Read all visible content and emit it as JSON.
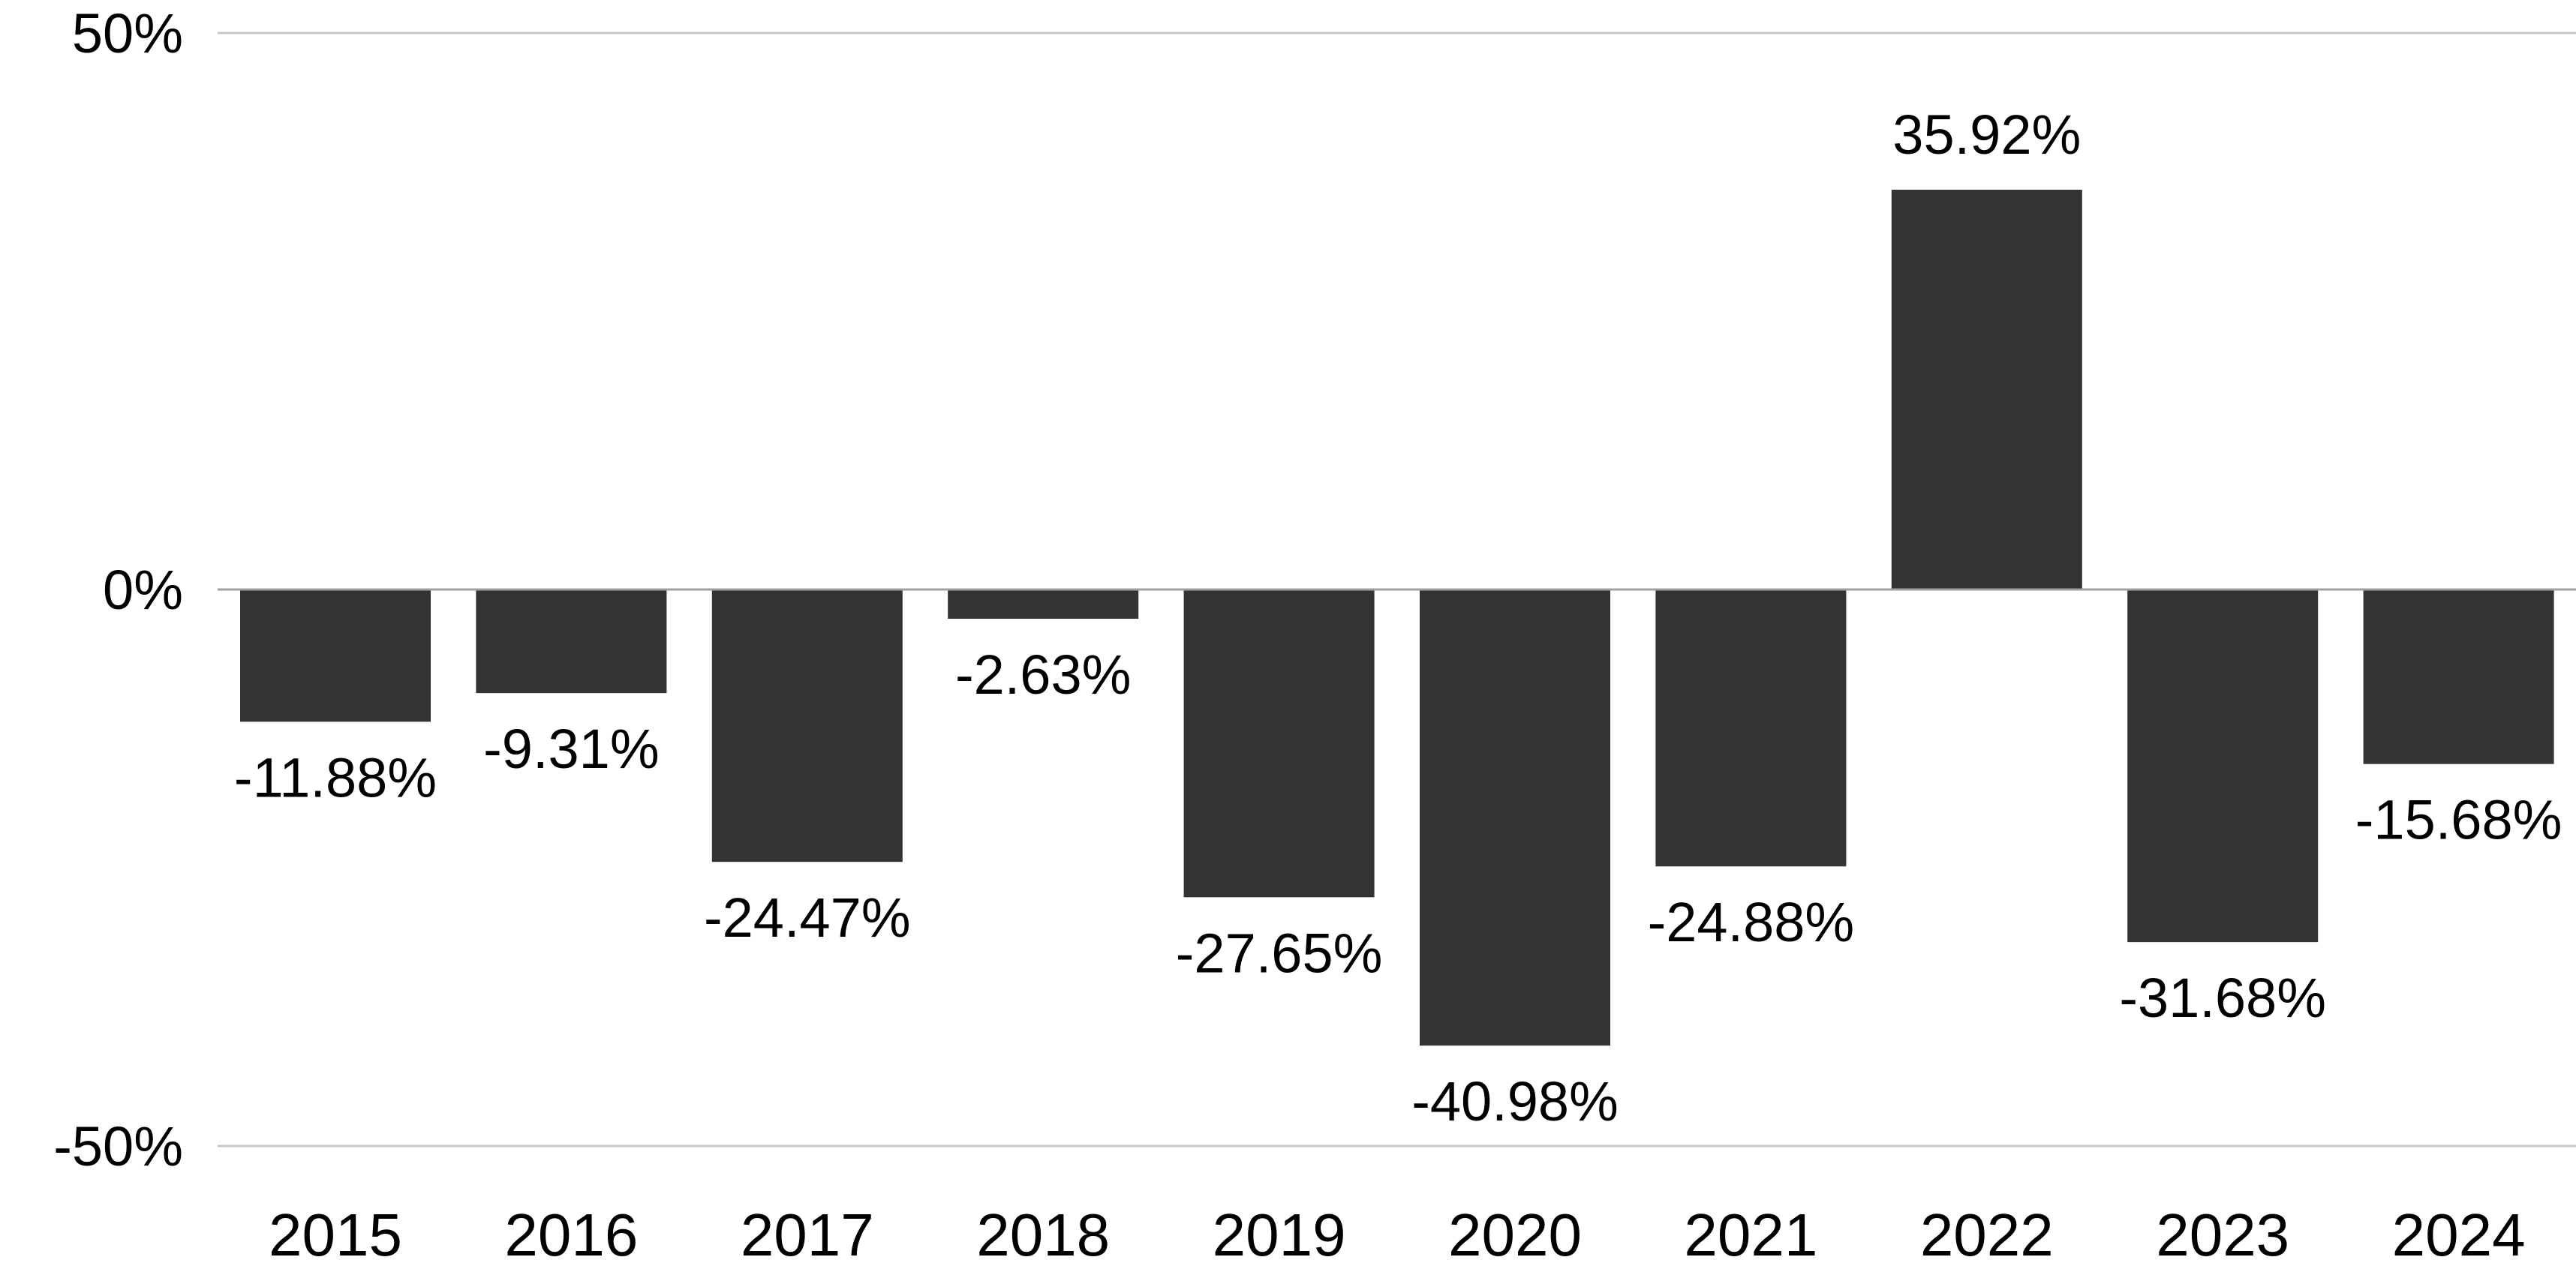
{
  "chart_data": {
    "type": "bar",
    "title": "",
    "xlabel": "",
    "ylabel": "",
    "categories": [
      "2015",
      "2016",
      "2017",
      "2018",
      "2019",
      "2020",
      "2021",
      "2022",
      "2023",
      "2024"
    ],
    "values": [
      -11.88,
      -9.31,
      -24.47,
      -2.63,
      -27.65,
      -40.98,
      -24.88,
      35.92,
      -31.68,
      -15.68
    ],
    "data_labels": [
      "-11.88%",
      "-9.31%",
      "-24.47%",
      "-2.63%",
      "-27.65%",
      "-40.98%",
      "-24.88%",
      "35.92%",
      "-31.68%",
      "-15.68%"
    ],
    "ylim": [
      -50,
      50
    ],
    "yticks": [
      50,
      0,
      -50
    ],
    "ytick_labels": [
      "50%",
      "0%",
      "-50%"
    ],
    "grid": true,
    "legend": "none",
    "colors": {
      "bar": "#333333",
      "gridline": "#c8c8c8",
      "zero_line": "#a0a0a0",
      "text": "#000000"
    }
  }
}
